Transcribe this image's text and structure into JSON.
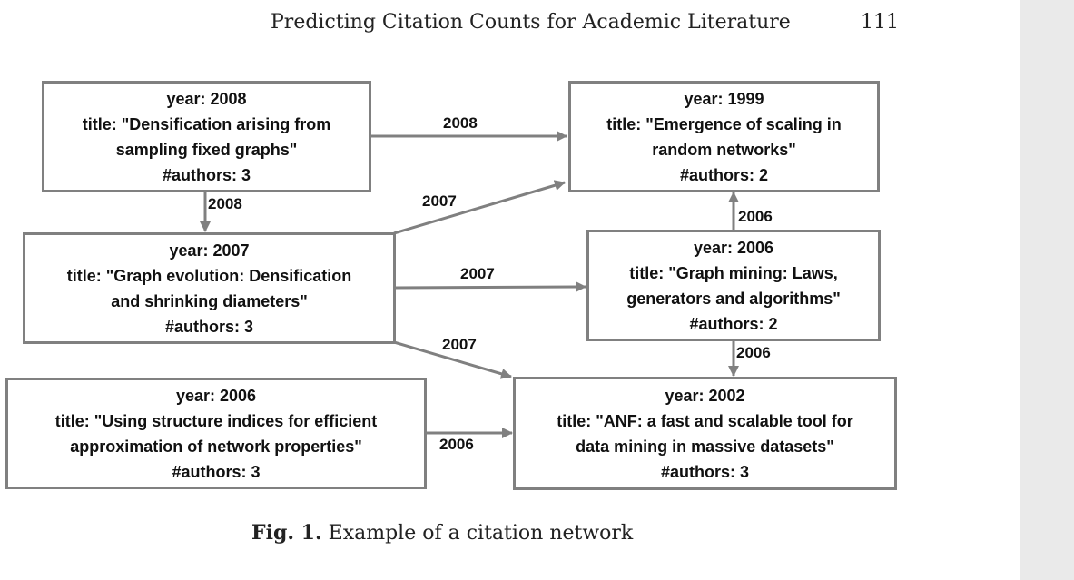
{
  "header": {
    "running_title": "Predicting Citation Counts for Academic Literature",
    "page_number": "111"
  },
  "figure": {
    "nodes": {
      "n2008": {
        "year": "year: 2008",
        "title_1": "title: \"Densification arising from",
        "title_2": "sampling fixed graphs\"",
        "authors": "#authors: 3"
      },
      "n1999": {
        "year": "year: 1999",
        "title_1": "title: \"Emergence of scaling in",
        "title_2": "random networks\"",
        "authors": "#authors: 2"
      },
      "n2007": {
        "year": "year: 2007",
        "title_1": "title: \"Graph evolution: Densification",
        "title_2": "and shrinking diameters\"",
        "authors": "#authors: 3"
      },
      "n2006a": {
        "year": "year: 2006",
        "title_1": "title: \"Graph mining: Laws,",
        "title_2": "generators and algorithms\"",
        "authors": "#authors: 2"
      },
      "n2006b": {
        "year": "year: 2006",
        "title_1": "title: \"Using structure indices for efficient",
        "title_2": "approximation of network properties\"",
        "authors": "#authors: 3"
      },
      "n2002": {
        "year": "year: 2002",
        "title_1": "title: \"ANF: a fast and scalable tool for",
        "title_2": "data mining in massive datasets\"",
        "authors": "#authors: 3"
      }
    },
    "edge_labels": {
      "e_2008_1999": "2008",
      "e_2008_2007": "2008",
      "e_2007_1999": "2007",
      "e_2007_2006a": "2007",
      "e_2007_2002": "2007",
      "e_2006a_1999": "2006",
      "e_2006a_2002": "2006",
      "e_2006b_2002": "2006"
    },
    "edge_color": "#808080"
  },
  "caption": {
    "label": "Fig. 1.",
    "text": " Example of a citation network"
  }
}
